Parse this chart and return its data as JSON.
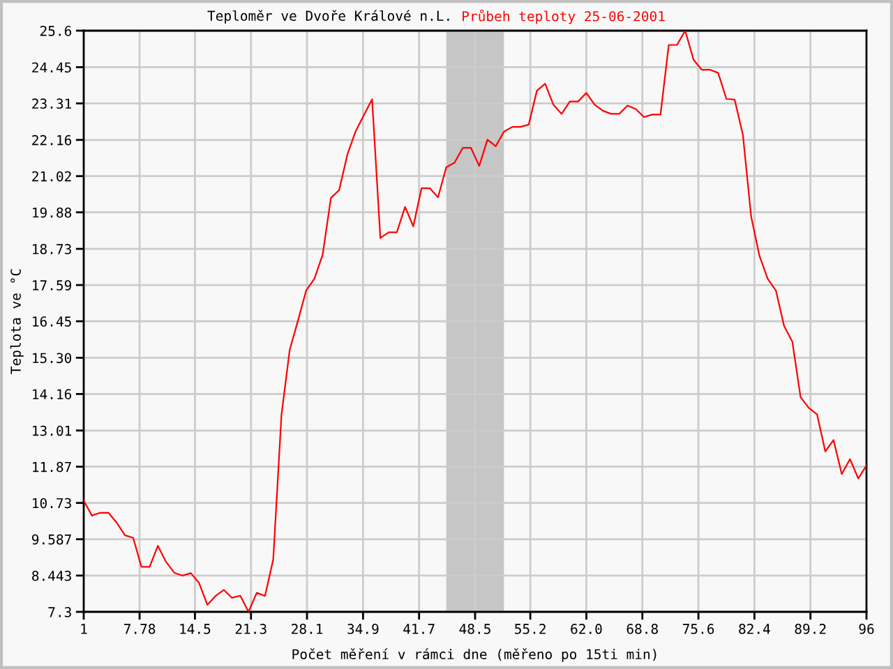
{
  "chart_data": {
    "type": "line",
    "title": "Teploměr ve Dvoře Králové n.L.",
    "subtitle": "Průbeh teploty 25-06-2001",
    "xlabel": "Počet měření v rámci dne (měřeno po 15ti min)",
    "ylabel": "Teplota ve °C",
    "x": [
      1,
      2,
      3,
      4,
      5,
      6,
      7,
      8,
      9,
      10,
      11,
      12,
      13,
      14,
      15,
      16,
      17,
      18,
      19,
      20,
      21,
      22,
      23,
      24,
      25,
      26,
      27,
      28,
      29,
      30,
      31,
      32,
      33,
      34,
      35,
      36,
      37,
      38,
      39,
      40,
      41,
      42,
      43,
      44,
      45,
      46,
      47,
      48,
      49,
      50,
      51,
      52,
      53,
      54,
      55,
      56,
      57,
      58,
      59,
      60,
      61,
      62,
      63,
      64,
      65,
      66,
      67,
      68,
      69,
      70,
      71,
      72,
      73,
      74,
      75,
      76,
      77,
      78,
      79,
      80,
      81,
      82,
      83,
      84,
      85,
      86,
      87,
      88,
      89,
      90,
      91,
      92,
      93,
      94,
      95,
      96
    ],
    "series": [
      {
        "color": "#ff0000",
        "values": [
          10.8,
          10.33,
          10.42,
          10.42,
          10.11,
          9.71,
          9.63,
          8.72,
          8.72,
          9.38,
          8.87,
          8.53,
          8.44,
          8.52,
          8.21,
          7.52,
          7.8,
          7.99,
          7.74,
          7.81,
          7.3,
          7.9,
          7.8,
          8.95,
          13.5,
          15.55,
          16.47,
          17.42,
          17.79,
          18.55,
          20.33,
          20.58,
          21.7,
          22.43,
          22.94,
          23.44,
          19.07,
          19.25,
          19.25,
          20.05,
          19.44,
          20.64,
          20.64,
          20.35,
          21.3,
          21.44,
          21.91,
          21.91,
          21.34,
          22.17,
          21.96,
          22.42,
          22.57,
          22.57,
          22.64,
          23.71,
          23.93,
          23.27,
          22.98,
          23.37,
          23.37,
          23.64,
          23.27,
          23.08,
          22.98,
          22.98,
          23.24,
          23.13,
          22.88,
          22.96,
          22.96,
          25.15,
          25.15,
          25.6,
          24.69,
          24.37,
          24.37,
          24.27,
          23.45,
          23.43,
          22.32,
          19.75,
          18.52,
          17.79,
          17.42,
          16.3,
          15.81,
          14.06,
          13.72,
          13.52,
          12.35,
          12.71,
          11.64,
          12.11,
          11.5,
          11.91
        ]
      }
    ],
    "xlim": [
      1,
      96
    ],
    "ylim": [
      7.3,
      25.6
    ],
    "xticks": [
      1,
      7.78,
      14.5,
      21.3,
      28.1,
      34.9,
      41.7,
      48.5,
      55.2,
      {
        "value": 62.0,
        "label": "62.0"
      },
      68.8,
      75.6,
      82.4,
      89.2,
      96
    ],
    "yticks": [
      7.3,
      8.443,
      9.587,
      10.73,
      11.87,
      13.01,
      14.16,
      {
        "value": 15.3,
        "label": "15.30"
      },
      16.45,
      17.59,
      18.73,
      19.88,
      21.02,
      22.16,
      23.31,
      24.45,
      25.6
    ],
    "grid": true,
    "marker": "none",
    "line_style": "solid",
    "bands": [
      {
        "axis": "x",
        "from": 45,
        "to": 52,
        "color": "#c6c6c6"
      }
    ]
  }
}
